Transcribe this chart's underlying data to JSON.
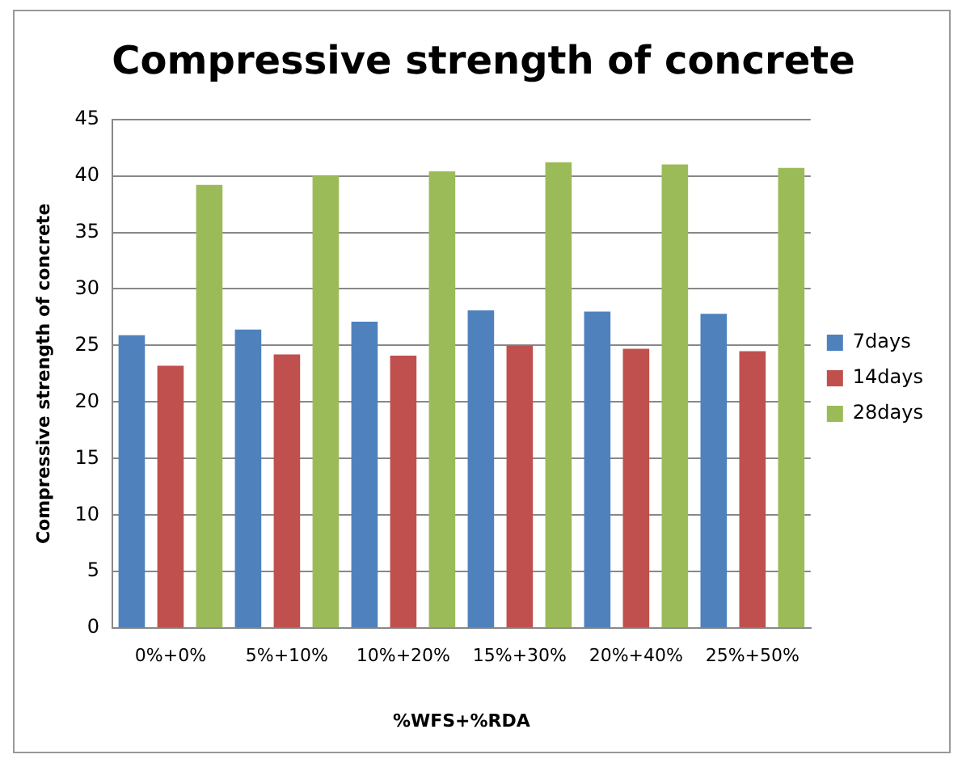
{
  "chart_data": {
    "type": "bar",
    "title": "Compressive strength of concrete",
    "xlabel": "%WFS+%RDA",
    "ylabel": "Compressive strength of concrete",
    "categories": [
      "0%+0%",
      "5%+10%",
      "10%+20%",
      "15%+30%",
      "20%+40%",
      "25%+50%"
    ],
    "series": [
      {
        "name": "7days",
        "color": "#4f81bd",
        "values": [
          25.9,
          26.4,
          27.1,
          28.1,
          28.0,
          27.8
        ]
      },
      {
        "name": "14days",
        "color": "#c0504d",
        "values": [
          23.2,
          24.2,
          24.1,
          25.0,
          24.7,
          24.5
        ]
      },
      {
        "name": "28days",
        "color": "#9bbb59",
        "values": [
          39.2,
          40.0,
          40.4,
          41.2,
          41.0,
          40.7
        ]
      }
    ],
    "ylim": [
      0,
      45
    ],
    "yticks": [
      0,
      5,
      10,
      15,
      20,
      25,
      30,
      35,
      40,
      45
    ],
    "grid": "y",
    "legend": "right"
  }
}
